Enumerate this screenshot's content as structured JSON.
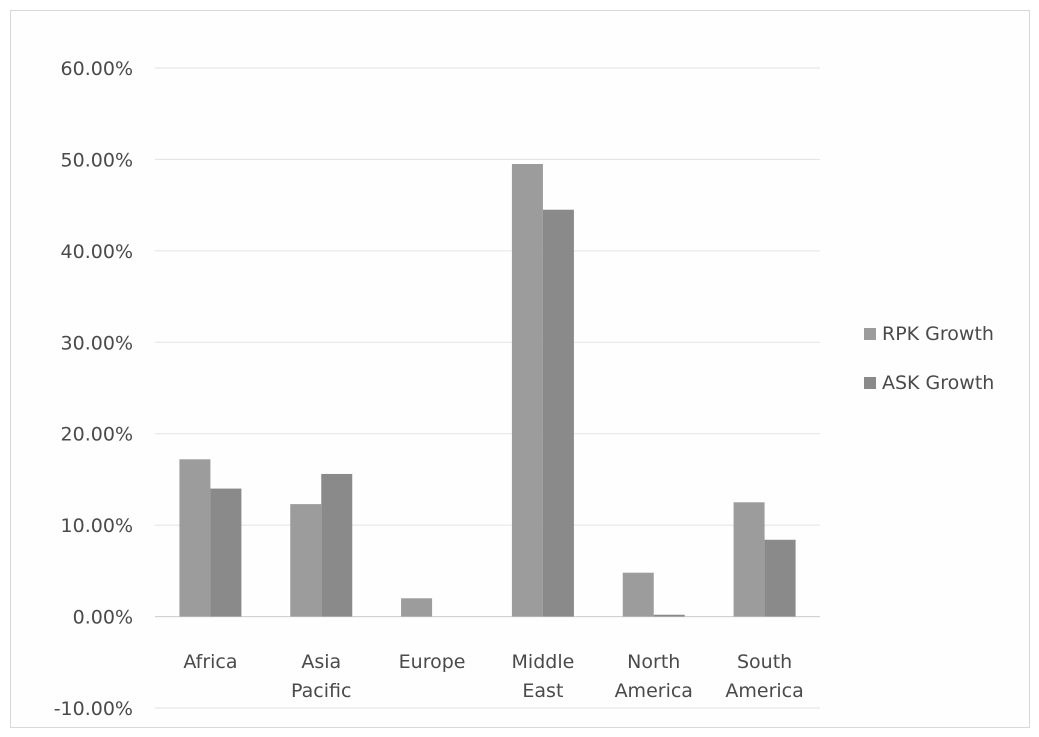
{
  "chart_data": {
    "type": "bar",
    "categories": [
      [
        "Africa"
      ],
      [
        "Asia",
        "Pacific"
      ],
      [
        "Europe"
      ],
      [
        "Middle",
        "East"
      ],
      [
        "North",
        "America"
      ],
      [
        "South",
        "America"
      ]
    ],
    "series": [
      {
        "name": "RPK Growth",
        "values": [
          17.2,
          12.3,
          2.0,
          49.5,
          4.8,
          12.5
        ],
        "color": "#9c9c9c"
      },
      {
        "name": "ASK Growth",
        "values": [
          14.0,
          15.6,
          0.0,
          44.5,
          0.2,
          8.4
        ],
        "color": "#8a8a8a"
      }
    ],
    "yticks": [
      "60.00%",
      "50.00%",
      "40.00%",
      "30.00%",
      "20.00%",
      "10.00%",
      "0.00%",
      "-10.00%"
    ],
    "ylim": [
      -10,
      60
    ],
    "grid": true,
    "legend_position": "right",
    "title": "",
    "xlabel": "",
    "ylabel": ""
  }
}
